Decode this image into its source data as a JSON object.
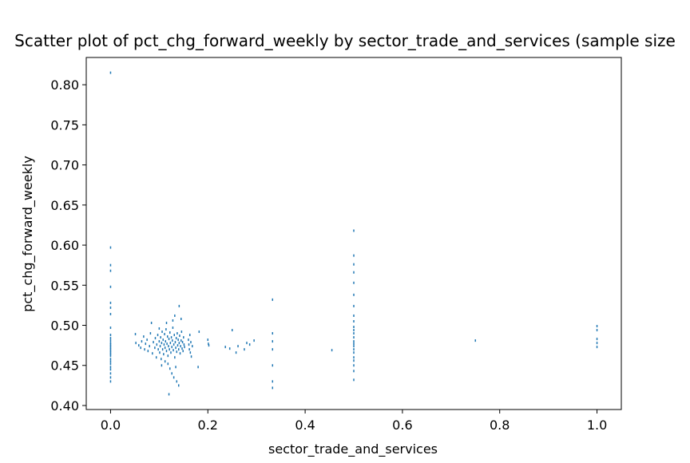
{
  "chart_data": {
    "type": "scatter",
    "title": "Scatter plot of pct_chg_forward_weekly by sector_trade_and_services (sample size",
    "xlabel": "sector_trade_and_services",
    "ylabel": "pct_chg_forward_weekly",
    "xlim": [
      -0.05,
      1.05
    ],
    "ylim": [
      0.395,
      0.834
    ],
    "xticks": [
      0.0,
      0.2,
      0.4,
      0.6,
      0.8,
      1.0
    ],
    "xtick_labels": [
      "0.0",
      "0.2",
      "0.4",
      "0.6",
      "0.8",
      "1.0"
    ],
    "yticks": [
      0.4,
      0.45,
      0.5,
      0.55,
      0.6,
      0.65,
      0.7,
      0.75,
      0.8
    ],
    "ytick_labels": [
      "0.40",
      "0.45",
      "0.50",
      "0.55",
      "0.60",
      "0.65",
      "0.70",
      "0.75",
      "0.80"
    ],
    "grid": false,
    "marker_color": "#1f77b4",
    "series": [
      {
        "points": [
          [
            0.0,
            0.815
          ],
          [
            0.0,
            0.597
          ],
          [
            0.0,
            0.575
          ],
          [
            0.0,
            0.568
          ],
          [
            0.0,
            0.548
          ],
          [
            0.0,
            0.528
          ],
          [
            0.0,
            0.522
          ],
          [
            0.0,
            0.514
          ],
          [
            0.0,
            0.497
          ],
          [
            0.0,
            0.488
          ],
          [
            0.0,
            0.484
          ],
          [
            0.0,
            0.481
          ],
          [
            0.0,
            0.478
          ],
          [
            0.0,
            0.476
          ],
          [
            0.0,
            0.474
          ],
          [
            0.0,
            0.472
          ],
          [
            0.0,
            0.47
          ],
          [
            0.0,
            0.468
          ],
          [
            0.0,
            0.466
          ],
          [
            0.0,
            0.464
          ],
          [
            0.0,
            0.462
          ],
          [
            0.0,
            0.458
          ],
          [
            0.0,
            0.455
          ],
          [
            0.0,
            0.452
          ],
          [
            0.0,
            0.448
          ],
          [
            0.0,
            0.445
          ],
          [
            0.0,
            0.44
          ],
          [
            0.0,
            0.435
          ],
          [
            0.0,
            0.43
          ],
          [
            0.051,
            0.489
          ],
          [
            0.052,
            0.478
          ],
          [
            0.058,
            0.475
          ],
          [
            0.062,
            0.472
          ],
          [
            0.064,
            0.48
          ],
          [
            0.068,
            0.486
          ],
          [
            0.07,
            0.47
          ],
          [
            0.072,
            0.477
          ],
          [
            0.075,
            0.482
          ],
          [
            0.077,
            0.468
          ],
          [
            0.08,
            0.474
          ],
          [
            0.082,
            0.49
          ],
          [
            0.084,
            0.503
          ],
          [
            0.086,
            0.465
          ],
          [
            0.088,
            0.479
          ],
          [
            0.091,
            0.472
          ],
          [
            0.092,
            0.484
          ],
          [
            0.094,
            0.46
          ],
          [
            0.095,
            0.476
          ],
          [
            0.097,
            0.488
          ],
          [
            0.098,
            0.47
          ],
          [
            0.1,
            0.496
          ],
          [
            0.1,
            0.48
          ],
          [
            0.101,
            0.466
          ],
          [
            0.102,
            0.474
          ],
          [
            0.103,
            0.485
          ],
          [
            0.104,
            0.458
          ],
          [
            0.105,
            0.478
          ],
          [
            0.106,
            0.492
          ],
          [
            0.107,
            0.47
          ],
          [
            0.108,
            0.482
          ],
          [
            0.109,
            0.464
          ],
          [
            0.11,
            0.476
          ],
          [
            0.111,
            0.489
          ],
          [
            0.112,
            0.472
          ],
          [
            0.113,
            0.48
          ],
          [
            0.114,
            0.495
          ],
          [
            0.115,
            0.468
          ],
          [
            0.116,
            0.477
          ],
          [
            0.117,
            0.486
          ],
          [
            0.118,
            0.462
          ],
          [
            0.119,
            0.474
          ],
          [
            0.12,
            0.483
          ],
          [
            0.121,
            0.47
          ],
          [
            0.122,
            0.491
          ],
          [
            0.123,
            0.478
          ],
          [
            0.124,
            0.466
          ],
          [
            0.125,
            0.485
          ],
          [
            0.126,
            0.473
          ],
          [
            0.127,
            0.481
          ],
          [
            0.128,
            0.497
          ],
          [
            0.129,
            0.469
          ],
          [
            0.13,
            0.476
          ],
          [
            0.131,
            0.488
          ],
          [
            0.132,
            0.46
          ],
          [
            0.133,
            0.479
          ],
          [
            0.134,
            0.472
          ],
          [
            0.135,
            0.484
          ],
          [
            0.136,
            0.467
          ],
          [
            0.137,
            0.49
          ],
          [
            0.138,
            0.475
          ],
          [
            0.139,
            0.482
          ],
          [
            0.14,
            0.47
          ],
          [
            0.141,
            0.478
          ],
          [
            0.142,
            0.487
          ],
          [
            0.143,
            0.465
          ],
          [
            0.144,
            0.474
          ],
          [
            0.145,
            0.481
          ],
          [
            0.146,
            0.492
          ],
          [
            0.147,
            0.471
          ],
          [
            0.148,
            0.479
          ],
          [
            0.149,
            0.468
          ],
          [
            0.15,
            0.485
          ],
          [
            0.151,
            0.476
          ],
          [
            0.152,
            0.473
          ],
          [
            0.118,
            0.452
          ],
          [
            0.122,
            0.446
          ],
          [
            0.126,
            0.44
          ],
          [
            0.13,
            0.435
          ],
          [
            0.134,
            0.448
          ],
          [
            0.12,
            0.414
          ],
          [
            0.14,
            0.425
          ],
          [
            0.136,
            0.43
          ],
          [
            0.112,
            0.455
          ],
          [
            0.105,
            0.45
          ],
          [
            0.128,
            0.506
          ],
          [
            0.132,
            0.512
          ],
          [
            0.141,
            0.524
          ],
          [
            0.145,
            0.508
          ],
          [
            0.115,
            0.503
          ],
          [
            0.16,
            0.482
          ],
          [
            0.161,
            0.476
          ],
          [
            0.162,
            0.47
          ],
          [
            0.163,
            0.488
          ],
          [
            0.164,
            0.466
          ],
          [
            0.165,
            0.479
          ],
          [
            0.166,
            0.461
          ],
          [
            0.168,
            0.474
          ],
          [
            0.18,
            0.448
          ],
          [
            0.182,
            0.492
          ],
          [
            0.2,
            0.482
          ],
          [
            0.201,
            0.477
          ],
          [
            0.202,
            0.475
          ],
          [
            0.236,
            0.473
          ],
          [
            0.245,
            0.471
          ],
          [
            0.25,
            0.494
          ],
          [
            0.258,
            0.466
          ],
          [
            0.262,
            0.474
          ],
          [
            0.275,
            0.47
          ],
          [
            0.28,
            0.478
          ],
          [
            0.286,
            0.476
          ],
          [
            0.295,
            0.481
          ],
          [
            0.333,
            0.532
          ],
          [
            0.333,
            0.49
          ],
          [
            0.333,
            0.48
          ],
          [
            0.333,
            0.47
          ],
          [
            0.333,
            0.45
          ],
          [
            0.333,
            0.43
          ],
          [
            0.333,
            0.422
          ],
          [
            0.455,
            0.469
          ],
          [
            0.5,
            0.618
          ],
          [
            0.5,
            0.587
          ],
          [
            0.5,
            0.576
          ],
          [
            0.5,
            0.566
          ],
          [
            0.5,
            0.553
          ],
          [
            0.5,
            0.538
          ],
          [
            0.5,
            0.524
          ],
          [
            0.5,
            0.512
          ],
          [
            0.5,
            0.505
          ],
          [
            0.5,
            0.498
          ],
          [
            0.5,
            0.494
          ],
          [
            0.5,
            0.49
          ],
          [
            0.5,
            0.485
          ],
          [
            0.5,
            0.48
          ],
          [
            0.5,
            0.477
          ],
          [
            0.5,
            0.474
          ],
          [
            0.5,
            0.47
          ],
          [
            0.5,
            0.466
          ],
          [
            0.5,
            0.46
          ],
          [
            0.5,
            0.456
          ],
          [
            0.5,
            0.45
          ],
          [
            0.5,
            0.443
          ],
          [
            0.5,
            0.432
          ],
          [
            0.75,
            0.481
          ],
          [
            1.0,
            0.499
          ],
          [
            1.0,
            0.494
          ],
          [
            1.0,
            0.483
          ],
          [
            1.0,
            0.478
          ],
          [
            1.0,
            0.473
          ]
        ]
      }
    ]
  }
}
